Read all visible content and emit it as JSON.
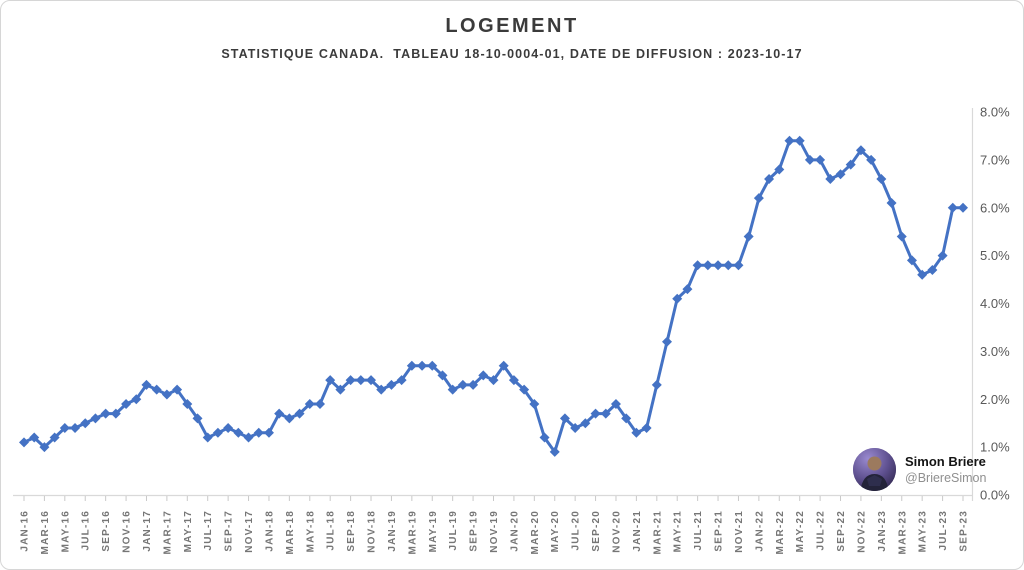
{
  "header": {
    "title": "LOGEMENT",
    "subtitle": "STATISTIQUE CANADA.  TABLEAU 18-10-0004-01, DATE DE DIFFUSION : 2023-10-17"
  },
  "watermark": {
    "name": "Simon Briere",
    "handle": "@BriereSimon",
    "avatar_icon": "person-photo-avatar"
  },
  "colors": {
    "series_line": "#4472C4",
    "axis_line": "#d9d9d9",
    "tick_mark": "#c9c9c9",
    "x_label": "#767676",
    "y_label": "#595959",
    "title_text": "#3b3b3b"
  },
  "chart_data": {
    "type": "line",
    "title": "LOGEMENT",
    "subtitle": "STATISTIQUE CANADA.  TABLEAU 18-10-0004-01, DATE DE DIFFUSION : 2023-10-17",
    "marker": "diamond",
    "grid": false,
    "legend": "none",
    "y_axis_side": "right",
    "ylim": [
      0.0,
      8.0
    ],
    "y_tick_labels": [
      "0.0%",
      "1.0%",
      "2.0%",
      "3.0%",
      "4.0%",
      "5.0%",
      "6.0%",
      "7.0%",
      "8.0%"
    ],
    "x_frequency": "monthly",
    "x_first": "JAN-16",
    "x_last": "SEP-23",
    "x_label_every": 2,
    "x_tick_labels": [
      "JAN-16",
      "MAR-16",
      "MAY-16",
      "JUL-16",
      "SEP-16",
      "NOV-16",
      "JAN-17",
      "MAR-17",
      "MAY-17",
      "JUL-17",
      "SEP-17",
      "NOV-17",
      "JAN-18",
      "MAR-18",
      "MAY-18",
      "JUL-18",
      "SEP-18",
      "NOV-18",
      "JAN-19",
      "MAR-19",
      "MAY-19",
      "JUL-19",
      "SEP-19",
      "NOV-19",
      "JAN-20",
      "MAR-20",
      "MAY-20",
      "JUL-20",
      "SEP-20",
      "NOV-20",
      "JAN-21",
      "MAR-21",
      "MAY-21",
      "JUL-21",
      "SEP-21",
      "NOV-21",
      "JAN-22",
      "MAR-22",
      "MAY-22",
      "JUL-22",
      "SEP-22",
      "NOV-22",
      "JAN-23",
      "MAR-23",
      "MAY-23",
      "JUL-23",
      "SEP-23"
    ],
    "values": [
      1.1,
      1.2,
      1.0,
      1.2,
      1.4,
      1.4,
      1.5,
      1.6,
      1.7,
      1.7,
      1.9,
      2.0,
      2.3,
      2.2,
      2.1,
      2.2,
      1.9,
      1.6,
      1.2,
      1.3,
      1.4,
      1.3,
      1.2,
      1.3,
      1.3,
      1.7,
      1.6,
      1.7,
      1.9,
      1.9,
      2.4,
      2.2,
      2.4,
      2.4,
      2.4,
      2.2,
      2.3,
      2.4,
      2.7,
      2.7,
      2.7,
      2.5,
      2.2,
      2.3,
      2.3,
      2.5,
      2.4,
      2.7,
      2.4,
      2.2,
      1.9,
      1.2,
      0.9,
      1.6,
      1.4,
      1.5,
      1.7,
      1.7,
      1.9,
      1.6,
      1.3,
      1.4,
      2.3,
      3.2,
      4.1,
      4.3,
      4.8,
      4.8,
      4.8,
      4.8,
      4.8,
      5.4,
      6.2,
      6.6,
      6.8,
      7.4,
      7.4,
      7.0,
      7.0,
      6.6,
      6.7,
      6.9,
      7.2,
      7.0,
      6.6,
      6.1,
      5.4,
      4.9,
      4.6,
      4.7,
      5.0,
      6.0,
      6.0
    ],
    "series_color": "#4472C4"
  }
}
